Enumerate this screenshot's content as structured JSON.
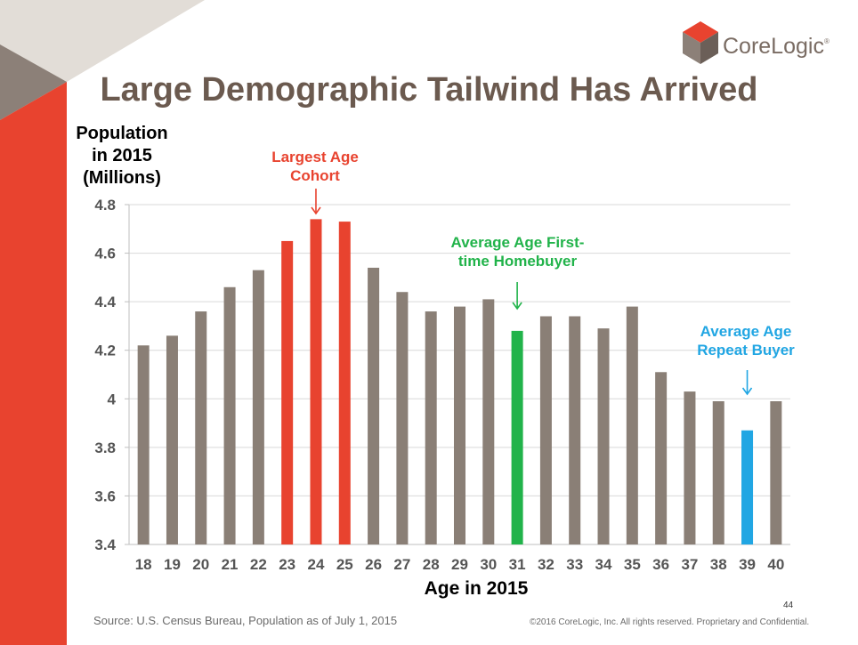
{
  "slide": {
    "title": "Large Demographic Tailwind Has Arrived",
    "brand": "CoreLogic",
    "source": "Source: U.S. Census Bureau, Population as of July 1, 2015",
    "copyright": "©2016 CoreLogic, Inc. All rights reserved. Proprietary and Confidential.",
    "page_number": "44"
  },
  "colors": {
    "bar_default": "#8a7f76",
    "bar_largest": "#e8432f",
    "bar_first_time": "#21b34a",
    "bar_repeat": "#21a6e3",
    "title": "#6b5a4f",
    "accent_red": "#e8432f"
  },
  "chart_data": {
    "type": "bar",
    "ylabel": "Population in 2015 (Millions)",
    "xlabel": "Age in 2015",
    "ylim": [
      3.4,
      4.8
    ],
    "yticks": [
      "4.8",
      "4.6",
      "4.4",
      "4.2",
      "4",
      "3.8",
      "3.6",
      "3.4"
    ],
    "ytick_values": [
      4.8,
      4.6,
      4.4,
      4.2,
      4.0,
      3.8,
      3.6,
      3.4
    ],
    "grid": true,
    "categories": [
      "18",
      "19",
      "20",
      "21",
      "22",
      "23",
      "24",
      "25",
      "26",
      "27",
      "28",
      "29",
      "30",
      "31",
      "32",
      "33",
      "34",
      "35",
      "36",
      "37",
      "38",
      "39",
      "40"
    ],
    "values": [
      4.22,
      4.26,
      4.36,
      4.46,
      4.53,
      4.65,
      4.74,
      4.73,
      4.54,
      4.44,
      4.36,
      4.38,
      4.41,
      4.28,
      4.34,
      4.34,
      4.29,
      4.38,
      4.11,
      4.03,
      3.99,
      3.87,
      3.99
    ],
    "highlight": [
      "default",
      "default",
      "default",
      "default",
      "default",
      "largest",
      "largest",
      "largest",
      "default",
      "default",
      "default",
      "default",
      "default",
      "first_time",
      "default",
      "default",
      "default",
      "default",
      "default",
      "default",
      "default",
      "repeat",
      "default"
    ],
    "annotations": {
      "largest_line1": "Largest Age",
      "largest_line2": "Cohort",
      "first_time_line1": "Average Age First-",
      "first_time_line2": "time Homebuyer",
      "repeat_line1": "Average Age",
      "repeat_line2": "Repeat Buyer"
    },
    "ylabel_lines": [
      "Population",
      "in 2015",
      "(Millions)"
    ]
  }
}
